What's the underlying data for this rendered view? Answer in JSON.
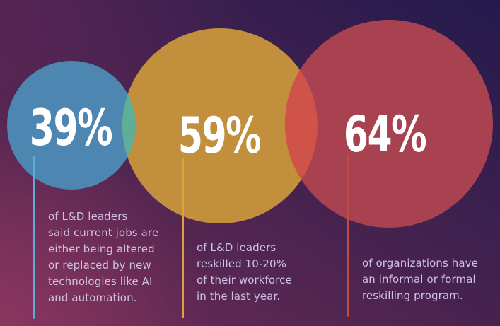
{
  "title": "Reskilling statistics infographic",
  "colors": {
    "value_text": "#ffffff",
    "description_text": "#cfc2e8",
    "background_bottom_left": "#7b3158",
    "background_top_right": "#241a4e"
  },
  "stats": [
    {
      "value": "39%",
      "circle_color": "#4d86b0",
      "line_color": "#5fa9db",
      "lines": [
        "of L&D leaders",
        "said current jobs are",
        "either being altered",
        "or replaced by new",
        "technologies like AI",
        "and automation."
      ]
    },
    {
      "value": "59%",
      "circle_color": "#c2903c",
      "line_color": "#d9a23d",
      "lines": [
        "of L&D leaders",
        "reskilled 10-20%",
        "of their workforce",
        "in the last year."
      ]
    },
    {
      "value": "64%",
      "circle_color": "#a84150",
      "line_color": "#c14b3e",
      "lines": [
        "of organizations have",
        "an informal or formal",
        "reskilling program."
      ]
    }
  ],
  "overlaps": [
    {
      "between": "39-59",
      "color": "#5fae98"
    },
    {
      "between": "59-64",
      "color": "#cf5348"
    }
  ],
  "chart_data": {
    "type": "bubble",
    "categories": [
      "of L&D leaders said current jobs are either being altered or replaced by new technologies like AI and automation.",
      "of L&D leaders reskilled 10-20% of their workforce in the last year.",
      "of organizations have an informal or formal reskilling program."
    ],
    "values": [
      39,
      59,
      64
    ],
    "title": "",
    "xlabel": "",
    "ylabel": "",
    "legend": "none",
    "layout": "three overlapping proportional circles, blue/gold/red, on purple gradient"
  }
}
